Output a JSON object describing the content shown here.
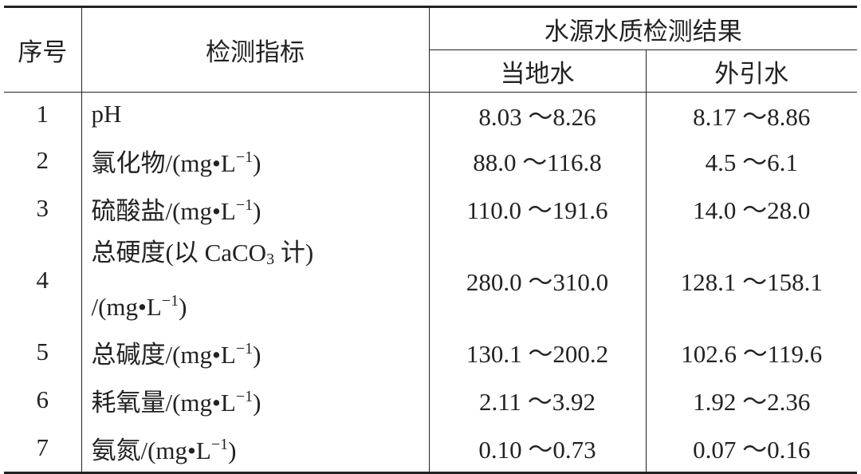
{
  "header": {
    "index": "序号",
    "indicator": "检测指标",
    "result": "水源水质检测结果",
    "local": "当地水",
    "external": "外引水"
  },
  "rows": [
    {
      "index": "1",
      "indicator": [
        [
          "pH"
        ]
      ],
      "local": "8.03 ～8.26",
      "external": "8.17 ～8.86"
    },
    {
      "index": "2",
      "indicator": [
        [
          "氯化物/(mg•L",
          {
            "text": "−1",
            "pos": "sup"
          },
          ")"
        ]
      ],
      "local": "88.0 ～116.8",
      "external": "4.5 ～6.1"
    },
    {
      "index": "3",
      "indicator": [
        [
          "硫酸盐/(mg•L",
          {
            "text": "−1",
            "pos": "sup"
          },
          ")"
        ]
      ],
      "local": "110.0 ～191.6",
      "external": "14.0 ～28.0"
    },
    {
      "index": "4",
      "indicator": [
        [
          "总硬度(以 CaCO",
          {
            "text": "3",
            "pos": "sub"
          },
          " 计)"
        ],
        [
          "/(mg•L",
          {
            "text": "−1",
            "pos": "sup"
          },
          ")"
        ]
      ],
      "local": "280.0 ～310.0",
      "external": "128.1 ～158.1"
    },
    {
      "index": "5",
      "indicator": [
        [
          "总碱度/(mg•L",
          {
            "text": "−1",
            "pos": "sup"
          },
          ")"
        ]
      ],
      "local": "130.1 ～200.2",
      "external": "102.6 ～119.6"
    },
    {
      "index": "6",
      "indicator": [
        [
          "耗氧量/(mg•L",
          {
            "text": "−1",
            "pos": "sup"
          },
          ")"
        ]
      ],
      "local": "2.11 ～3.92",
      "external": "1.92 ～2.36"
    },
    {
      "index": "7",
      "indicator": [
        [
          "氨氮/(mg•L",
          {
            "text": "−1",
            "pos": "sup"
          },
          ")"
        ]
      ],
      "local": "0.10 ～0.73",
      "external": "0.07 ～0.16"
    }
  ]
}
